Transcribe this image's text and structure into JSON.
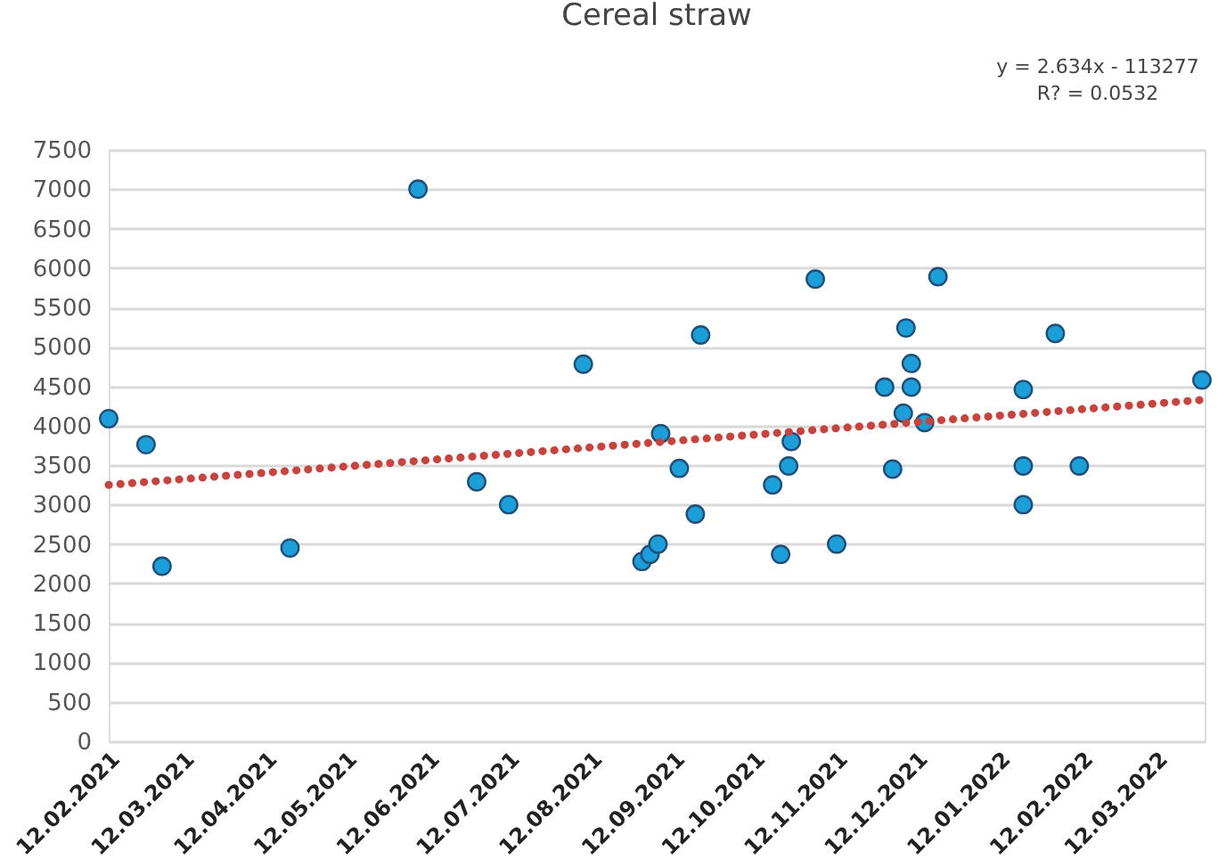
{
  "chart_data": {
    "type": "scatter",
    "title": "Cereal straw",
    "annotations": [
      "y = 2.634x - 113277",
      "R? = 0.0532"
    ],
    "xlim": [
      "2021-02-12",
      "2022-03-30"
    ],
    "xticks": [
      {
        "value": "2021-02-12",
        "label": "12.02.2021"
      },
      {
        "value": "2021-03-12",
        "label": "12.03.2021"
      },
      {
        "value": "2021-04-12",
        "label": "12.04.2021"
      },
      {
        "value": "2021-05-12",
        "label": "12.05.2021"
      },
      {
        "value": "2021-06-12",
        "label": "12.06.2021"
      },
      {
        "value": "2021-07-12",
        "label": "12.07.2021"
      },
      {
        "value": "2021-08-12",
        "label": "12.08.2021"
      },
      {
        "value": "2021-09-12",
        "label": "12.09.2021"
      },
      {
        "value": "2021-10-12",
        "label": "12.10.2021"
      },
      {
        "value": "2021-11-12",
        "label": "12.11.2021"
      },
      {
        "value": "2021-12-12",
        "label": "12.12.2021"
      },
      {
        "value": "2022-01-12",
        "label": "12.01.2022"
      },
      {
        "value": "2022-02-12",
        "label": "12.02.2022"
      },
      {
        "value": "2022-03-12",
        "label": "12.03.2022"
      }
    ],
    "ylim": [
      0,
      7500
    ],
    "yticks": [
      0,
      500,
      1000,
      1500,
      2000,
      2500,
      3000,
      3500,
      4000,
      4500,
      5000,
      5500,
      6000,
      6500,
      7000,
      7500
    ],
    "grid": "y",
    "series": [
      {
        "marker": "circle",
        "color": "#1a9fd9",
        "x": [
          "2021-02-12",
          "2021-02-26",
          "2021-03-04",
          "2021-04-21",
          "2021-06-08",
          "2021-06-30",
          "2021-07-12",
          "2021-08-09",
          "2021-08-31",
          "2021-09-03",
          "2021-09-06",
          "2021-09-07",
          "2021-09-14",
          "2021-09-20",
          "2021-09-22",
          "2021-10-19",
          "2021-10-22",
          "2021-10-25",
          "2021-10-26",
          "2021-11-04",
          "2021-11-12",
          "2021-11-30",
          "2021-12-03",
          "2021-12-07",
          "2021-12-08",
          "2021-12-10",
          "2021-12-10",
          "2021-12-15",
          "2021-12-20",
          "2022-01-21",
          "2022-01-21",
          "2022-01-21",
          "2022-02-02",
          "2022-02-11",
          "2022-03-29"
        ],
        "values": [
          4090,
          3760,
          2220,
          2450,
          7000,
          3290,
          3000,
          4780,
          2280,
          2370,
          2500,
          3900,
          3460,
          2880,
          5150,
          3250,
          2370,
          3490,
          3800,
          5860,
          2500,
          4490,
          3450,
          4160,
          5240,
          4790,
          4490,
          4040,
          5890,
          4460,
          3490,
          3000,
          5170,
          3490,
          4580
        ]
      },
      {
        "type": "line",
        "marker": "none",
        "line_style": "dotted",
        "color": "#c9423b",
        "x": [
          "2021-02-12",
          "2022-03-30"
        ],
        "values": [
          3250,
          4330
        ]
      }
    ]
  }
}
